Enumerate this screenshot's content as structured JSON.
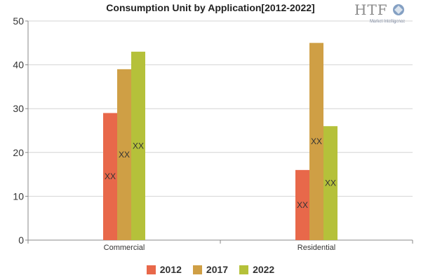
{
  "chart_data": {
    "type": "bar",
    "title": "Consumption Unit by  Application[2012-2022]",
    "categories": [
      "Commercial",
      "Residential"
    ],
    "series": [
      {
        "name": "2012",
        "color": "#e8684a",
        "values": [
          29,
          16
        ]
      },
      {
        "name": "2017",
        "color": "#cf9f45",
        "values": [
          39,
          45
        ]
      },
      {
        "name": "2022",
        "color": "#b5c13a",
        "values": [
          43,
          26
        ]
      }
    ],
    "bar_label": "XX",
    "ylim": [
      0,
      50
    ],
    "yticks": [
      0,
      10,
      20,
      30,
      40,
      50
    ],
    "grid": "horizontal",
    "legend_position": "bottom-center"
  },
  "logo": {
    "text": "HTF",
    "subtext": "Market Intelligence"
  }
}
